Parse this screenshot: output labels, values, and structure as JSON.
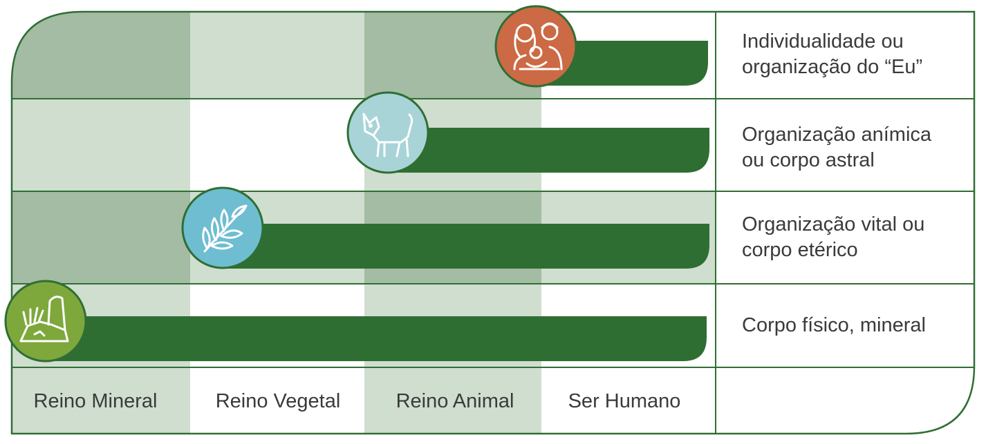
{
  "colors": {
    "border": "#2f6e33",
    "bar": "#2f6e33",
    "cell_dark": "#a3bca3",
    "cell_light": "#cfdecf",
    "cell_white": "#ffffff",
    "circle_orange": "#cb6a45",
    "circle_lightblue": "#a8d4d8",
    "circle_blue": "#6ebdd0",
    "circle_green": "#7ea83c",
    "icon_stroke": "#ffffff"
  },
  "columns": [
    {
      "label": "Reino Mineral"
    },
    {
      "label": "Reino Vegetal"
    },
    {
      "label": "Reino Animal"
    },
    {
      "label": "Ser Humano"
    }
  ],
  "rows": [
    {
      "label_line1": "Individualidade ou",
      "label_line2": "organização do “Eu”",
      "icon": "family-icon",
      "circle_color": "#cb6a45",
      "starts_at_column": 3
    },
    {
      "label_line1": "Organização anímica",
      "label_line2": "ou corpo astral",
      "icon": "dog-icon",
      "circle_color": "#a8d4d8",
      "starts_at_column": 2
    },
    {
      "label_line1": "Organização vital ou",
      "label_line2": "corpo etérico",
      "icon": "leaf-branch-icon",
      "circle_color": "#6ebdd0",
      "starts_at_column": 1
    },
    {
      "label_line1": "Corpo físico, mineral",
      "label_line2": "",
      "icon": "rock-grass-icon",
      "circle_color": "#7ea83c",
      "starts_at_column": 0
    }
  ]
}
